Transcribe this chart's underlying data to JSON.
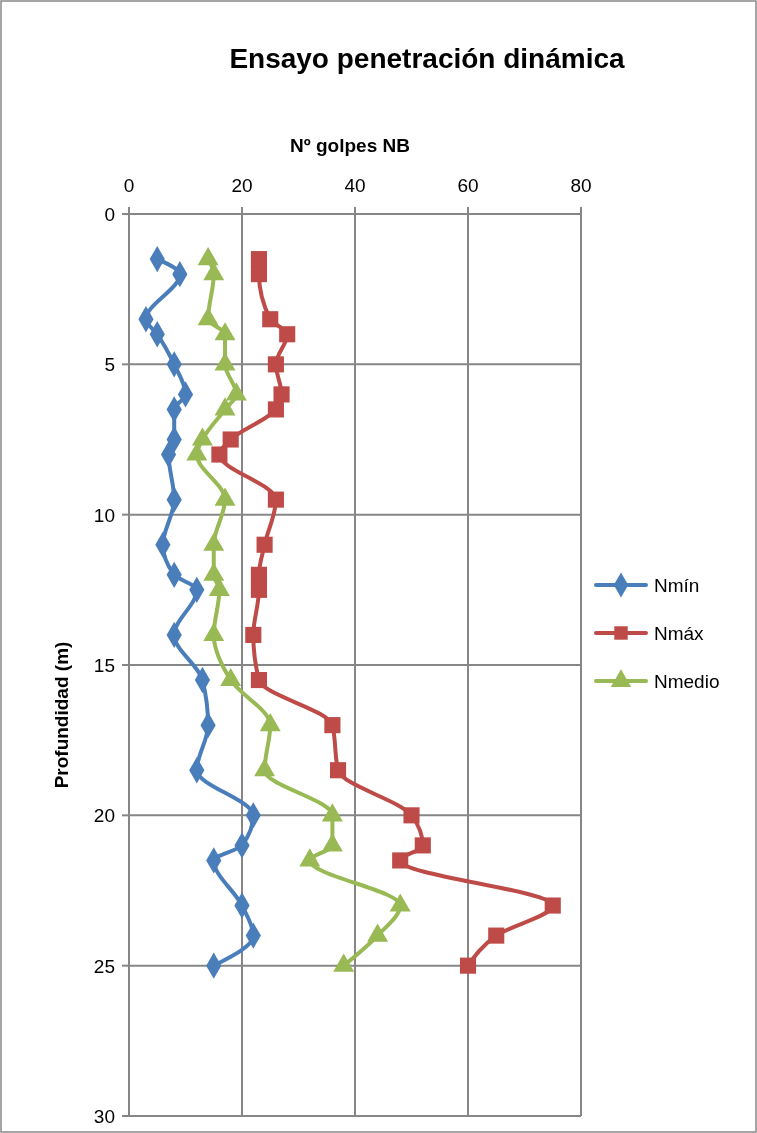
{
  "chart_data": {
    "type": "line",
    "title": "Ensayo penetración dinámica",
    "xlabel": "Nº golpes NB",
    "ylabel": "Profundidad (m)",
    "orientation": "horizontal",
    "xlim": [
      0,
      80
    ],
    "xticks": [
      0,
      20,
      40,
      60,
      80
    ],
    "ylim": [
      30,
      0
    ],
    "yticks": [
      0,
      5,
      10,
      15,
      20,
      25,
      30
    ],
    "grid": true,
    "legend": "right",
    "series": [
      {
        "name": "Nmín",
        "color": "#4a7ebb",
        "marker": "diamond",
        "x": [
          1.5,
          2,
          3.5,
          4,
          5,
          6,
          6.5,
          7.5,
          8,
          9.5,
          11,
          12,
          12.5,
          14,
          15.5,
          17,
          18.5,
          20,
          21,
          21.5,
          23,
          24,
          25
        ],
        "values": [
          5,
          9,
          3,
          5,
          8,
          10,
          8,
          8,
          7,
          8,
          6,
          8,
          12,
          8,
          13,
          14,
          12,
          22,
          20,
          15,
          20,
          22,
          15
        ]
      },
      {
        "name": "Nmáx",
        "color": "#be4b48",
        "marker": "square",
        "x": [
          1.5,
          2,
          3.5,
          4,
          5,
          6,
          6.5,
          7.5,
          8,
          9.5,
          11,
          12,
          12.5,
          14,
          15.5,
          17,
          18.5,
          20,
          21,
          21.5,
          23,
          24,
          25
        ],
        "values": [
          23,
          23,
          25,
          28,
          26,
          27,
          26,
          18,
          16,
          26,
          24,
          23,
          23,
          22,
          23,
          36,
          37,
          50,
          52,
          48,
          75,
          65,
          60
        ]
      },
      {
        "name": "Nmedio",
        "color": "#98b954",
        "marker": "triangle",
        "x": [
          1.5,
          2,
          3.5,
          4,
          5,
          6,
          6.5,
          7.5,
          8,
          9.5,
          11,
          12,
          12.5,
          14,
          15.5,
          17,
          18.5,
          20,
          21,
          21.5,
          23,
          24,
          25
        ],
        "values": [
          14,
          15,
          14,
          17,
          17,
          19,
          17,
          13,
          12,
          17,
          15,
          15,
          16,
          15,
          18,
          25,
          24,
          36,
          36,
          32,
          48,
          44,
          38
        ]
      }
    ]
  }
}
